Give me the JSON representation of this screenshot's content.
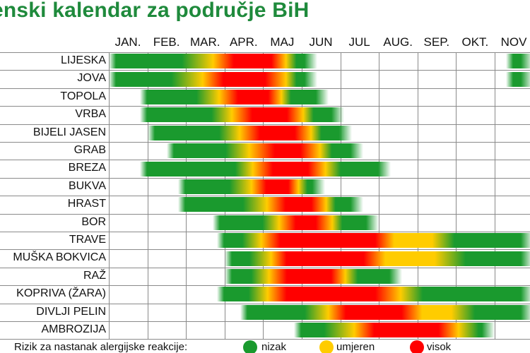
{
  "chart_data": {
    "type": "heatmap",
    "title": "enski kalendar za područje BiH",
    "months": [
      "JAN.",
      "FEB.",
      "MAR.",
      "APR.",
      "MAJ",
      "JUN",
      "JUL",
      "AUG.",
      "SEP.",
      "OKT.",
      "NOV"
    ],
    "legend": {
      "label": "Rizik za nastanak alergijske reakcije:",
      "items": [
        {
          "name": "nizak",
          "color": "#1a9a2e"
        },
        {
          "name": "umjeren",
          "color": "#ffcc00"
        },
        {
          "name": "visok",
          "color": "#ff0000"
        }
      ]
    },
    "rows": [
      {
        "name": "LIJESKA",
        "start": 0.0,
        "end": 5.4,
        "stops": [
          [
            0,
            "g"
          ],
          [
            0.35,
            "g"
          ],
          [
            0.5,
            "y"
          ],
          [
            0.6,
            "r"
          ],
          [
            0.78,
            "r"
          ],
          [
            0.85,
            "y"
          ],
          [
            0.9,
            "g"
          ],
          [
            1,
            "g"
          ]
        ]
      },
      {
        "name": "JOVA",
        "start": 0.0,
        "end": 5.4,
        "stops": [
          [
            0,
            "g"
          ],
          [
            0.3,
            "g"
          ],
          [
            0.45,
            "y"
          ],
          [
            0.55,
            "r"
          ],
          [
            0.75,
            "r"
          ],
          [
            0.85,
            "y"
          ],
          [
            0.9,
            "g"
          ],
          [
            1,
            "g"
          ]
        ]
      },
      {
        "name": "TOPOLA",
        "start": 0.8,
        "end": 5.7,
        "stops": [
          [
            0,
            "g"
          ],
          [
            0.3,
            "g"
          ],
          [
            0.42,
            "y"
          ],
          [
            0.52,
            "r"
          ],
          [
            0.68,
            "r"
          ],
          [
            0.75,
            "y"
          ],
          [
            0.8,
            "g"
          ],
          [
            1,
            "g"
          ]
        ]
      },
      {
        "name": "VRBA",
        "start": 0.8,
        "end": 6.1,
        "stops": [
          [
            0,
            "g"
          ],
          [
            0.35,
            "g"
          ],
          [
            0.45,
            "y"
          ],
          [
            0.55,
            "r"
          ],
          [
            0.72,
            "r"
          ],
          [
            0.8,
            "y"
          ],
          [
            0.85,
            "g"
          ],
          [
            1,
            "g"
          ]
        ]
      },
      {
        "name": "BIJELI JASEN",
        "start": 1.0,
        "end": 6.3,
        "stops": [
          [
            0,
            "g"
          ],
          [
            0.35,
            "g"
          ],
          [
            0.45,
            "y"
          ],
          [
            0.55,
            "r"
          ],
          [
            0.72,
            "r"
          ],
          [
            0.8,
            "y"
          ],
          [
            0.85,
            "g"
          ],
          [
            1,
            "g"
          ]
        ]
      },
      {
        "name": "GRAB",
        "start": 1.5,
        "end": 6.6,
        "stops": [
          [
            0,
            "g"
          ],
          [
            0.3,
            "g"
          ],
          [
            0.42,
            "y"
          ],
          [
            0.55,
            "r"
          ],
          [
            0.68,
            "r"
          ],
          [
            0.78,
            "y"
          ],
          [
            0.84,
            "g"
          ],
          [
            1,
            "g"
          ]
        ]
      },
      {
        "name": "BREZA",
        "start": 0.8,
        "end": 7.3,
        "stops": [
          [
            0,
            "g"
          ],
          [
            0.38,
            "g"
          ],
          [
            0.45,
            "y"
          ],
          [
            0.53,
            "r"
          ],
          [
            0.67,
            "r"
          ],
          [
            0.74,
            "y"
          ],
          [
            0.8,
            "g"
          ],
          [
            1,
            "g"
          ]
        ]
      },
      {
        "name": "BUKVA",
        "start": 1.8,
        "end": 5.6,
        "stops": [
          [
            0,
            "g"
          ],
          [
            0.35,
            "g"
          ],
          [
            0.5,
            "y"
          ],
          [
            0.6,
            "r"
          ],
          [
            0.75,
            "r"
          ],
          [
            0.82,
            "y"
          ],
          [
            0.88,
            "g"
          ],
          [
            1,
            "g"
          ]
        ]
      },
      {
        "name": "HRAST",
        "start": 1.8,
        "end": 6.6,
        "stops": [
          [
            0,
            "g"
          ],
          [
            0.35,
            "g"
          ],
          [
            0.48,
            "y"
          ],
          [
            0.58,
            "r"
          ],
          [
            0.72,
            "r"
          ],
          [
            0.8,
            "y"
          ],
          [
            0.85,
            "g"
          ],
          [
            1,
            "g"
          ]
        ]
      },
      {
        "name": "BOR",
        "start": 2.7,
        "end": 7.0,
        "stops": [
          [
            0,
            "g"
          ],
          [
            0.3,
            "g"
          ],
          [
            0.4,
            "y"
          ],
          [
            0.5,
            "r"
          ],
          [
            0.62,
            "r"
          ],
          [
            0.72,
            "y"
          ],
          [
            0.78,
            "g"
          ],
          [
            1,
            "g"
          ]
        ]
      },
      {
        "name": "TRAVE",
        "start": 2.8,
        "end": 11.0,
        "stops": [
          [
            0,
            "g"
          ],
          [
            0.08,
            "g"
          ],
          [
            0.14,
            "y"
          ],
          [
            0.2,
            "r"
          ],
          [
            0.5,
            "r"
          ],
          [
            0.56,
            "y"
          ],
          [
            0.68,
            "y"
          ],
          [
            0.75,
            "g"
          ],
          [
            1,
            "g"
          ]
        ]
      },
      {
        "name": "MUŠKA BOKVICA",
        "start": 3.0,
        "end": 11.0,
        "stops": [
          [
            0,
            "g"
          ],
          [
            0.08,
            "g"
          ],
          [
            0.15,
            "y"
          ],
          [
            0.2,
            "r"
          ],
          [
            0.45,
            "r"
          ],
          [
            0.52,
            "y"
          ],
          [
            0.68,
            "y"
          ],
          [
            0.78,
            "g"
          ],
          [
            1,
            "g"
          ]
        ]
      },
      {
        "name": "RAŽ",
        "start": 3.0,
        "end": 7.6,
        "stops": [
          [
            0,
            "g"
          ],
          [
            0.15,
            "g"
          ],
          [
            0.25,
            "y"
          ],
          [
            0.35,
            "r"
          ],
          [
            0.6,
            "r"
          ],
          [
            0.68,
            "y"
          ],
          [
            0.75,
            "g"
          ],
          [
            1,
            "g"
          ]
        ]
      },
      {
        "name": "KOPRIVA (ŽARA)",
        "start": 2.8,
        "end": 11.0,
        "stops": [
          [
            0,
            "g"
          ],
          [
            0.1,
            "g"
          ],
          [
            0.16,
            "y"
          ],
          [
            0.22,
            "r"
          ],
          [
            0.5,
            "r"
          ],
          [
            0.58,
            "y"
          ],
          [
            0.65,
            "g"
          ],
          [
            1,
            "g"
          ]
        ]
      },
      {
        "name": "DIVLJI PELIN",
        "start": 3.4,
        "end": 11.0,
        "stops": [
          [
            0,
            "g"
          ],
          [
            0.22,
            "g"
          ],
          [
            0.3,
            "y"
          ],
          [
            0.36,
            "r"
          ],
          [
            0.55,
            "r"
          ],
          [
            0.62,
            "y"
          ],
          [
            0.72,
            "y"
          ],
          [
            0.8,
            "g"
          ],
          [
            1,
            "g"
          ]
        ]
      },
      {
        "name": "AMBROZIJA",
        "start": 4.8,
        "end": 10.0,
        "stops": [
          [
            0,
            "g"
          ],
          [
            0.15,
            "g"
          ],
          [
            0.3,
            "y"
          ],
          [
            0.4,
            "r"
          ],
          [
            0.72,
            "r"
          ],
          [
            0.82,
            "y"
          ],
          [
            0.92,
            "g"
          ],
          [
            1,
            "g"
          ]
        ]
      }
    ],
    "extra_bar": {
      "row": "LIJESKA",
      "start": 10.3,
      "end": 11.0
    },
    "extra_bar_2": {
      "row": "JOVA",
      "start": 10.3,
      "end": 11.0
    }
  }
}
